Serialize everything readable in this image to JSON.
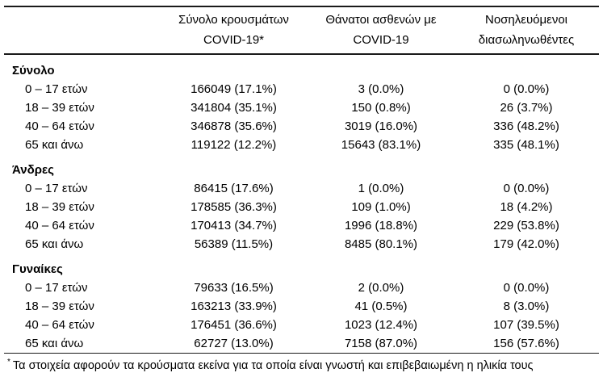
{
  "table": {
    "header": {
      "cases": {
        "line1": "Σύνολο κρουσμάτων",
        "line2": "COVID-19*"
      },
      "deaths": {
        "line1": "Θάνατοι ασθενών με",
        "line2": "COVID-19"
      },
      "intubated": {
        "line1": "Νοσηλευόμενοι",
        "line2": "διασωληνωθέντες"
      }
    },
    "sections": [
      {
        "title": "Σύνολο",
        "rows": [
          {
            "label": "0 – 17 ετών",
            "cases": "166049 (17.1%)",
            "deaths": "3 (0.0%)",
            "intubated": "0 (0.0%)"
          },
          {
            "label": "18 – 39 ετών",
            "cases": "341804 (35.1%)",
            "deaths": "150 (0.8%)",
            "intubated": "26 (3.7%)"
          },
          {
            "label": "40 – 64 ετών",
            "cases": "346878 (35.6%)",
            "deaths": "3019 (16.0%)",
            "intubated": "336 (48.2%)"
          },
          {
            "label": "65 και άνω",
            "cases": "119122 (12.2%)",
            "deaths": "15643 (83.1%)",
            "intubated": "335 (48.1%)"
          }
        ]
      },
      {
        "title": "Άνδρες",
        "rows": [
          {
            "label": "0 – 17 ετών",
            "cases": "86415 (17.6%)",
            "deaths": "1 (0.0%)",
            "intubated": "0 (0.0%)"
          },
          {
            "label": "18 – 39 ετών",
            "cases": "178585 (36.3%)",
            "deaths": "109 (1.0%)",
            "intubated": "18 (4.2%)"
          },
          {
            "label": "40 – 64 ετών",
            "cases": "170413 (34.7%)",
            "deaths": "1996 (18.8%)",
            "intubated": "229 (53.8%)"
          },
          {
            "label": "65 και άνω",
            "cases": "56389 (11.5%)",
            "deaths": "8485 (80.1%)",
            "intubated": "179 (42.0%)"
          }
        ]
      },
      {
        "title": "Γυναίκες",
        "rows": [
          {
            "label": "0 – 17 ετών",
            "cases": "79633 (16.5%)",
            "deaths": "2 (0.0%)",
            "intubated": "0 (0.0%)"
          },
          {
            "label": "18 – 39 ετών",
            "cases": "163213 (33.9%)",
            "deaths": "41 (0.5%)",
            "intubated": "8 (3.0%)"
          },
          {
            "label": "40 – 64 ετών",
            "cases": "176451 (36.6%)",
            "deaths": "1023 (12.4%)",
            "intubated": "107 (39.5%)"
          },
          {
            "label": "65 και άνω",
            "cases": "62727 (13.0%)",
            "deaths": "7158 (87.0%)",
            "intubated": "156 (57.6%)"
          }
        ]
      }
    ],
    "footnote": {
      "marker": "*",
      "text": "Τα στοιχεία αφορούν τα κρούσματα εκείνα για τα οποία είναι γνωστή και επιβεβαιωμένη η ηλικία τους"
    },
    "colors": {
      "text": "#000000",
      "rule": "#1a1a1a",
      "background": "#ffffff"
    }
  }
}
